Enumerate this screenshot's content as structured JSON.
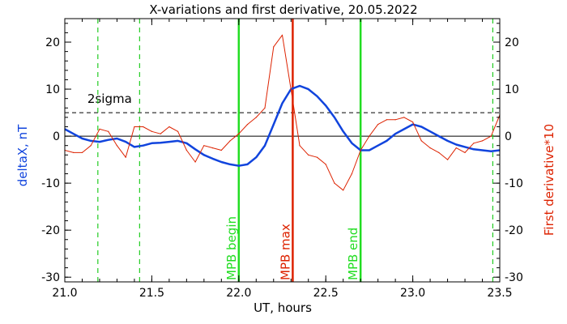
{
  "chart_data": {
    "type": "line",
    "title": "X-variations and first derivative, 20.05.2022",
    "xlabel": "UT, hours",
    "ylabel_left": "deltaX, nT",
    "ylabel_right": "First derivative*10",
    "xlim": [
      21.0,
      23.5
    ],
    "ylim": [
      -31,
      25
    ],
    "xticks": [
      21.0,
      21.5,
      22.0,
      22.5,
      23.0,
      23.5
    ],
    "xtick_labels": [
      "21.0",
      "21.5",
      "22.0",
      "22.5",
      "23.0",
      "23.5"
    ],
    "yticks": [
      -30,
      -20,
      -10,
      0,
      10,
      20
    ],
    "ytick_labels": [
      "-30",
      "-20",
      "-10",
      "0",
      "10",
      "20"
    ],
    "threshold": {
      "label": "2sigma",
      "value": 5
    },
    "vlines": [
      {
        "x": 21.19,
        "style": "dashed",
        "color": "#22cc22"
      },
      {
        "x": 21.43,
        "style": "dashed",
        "color": "#22cc22"
      },
      {
        "x": 23.46,
        "style": "dashed",
        "color": "#22cc22"
      },
      {
        "x": 22.0,
        "style": "solid",
        "color": "#22dd22",
        "label": "MPB begin"
      },
      {
        "x": 22.31,
        "style": "solid",
        "color": "#dd2200",
        "label": "MPB max"
      },
      {
        "x": 22.7,
        "style": "solid",
        "color": "#22dd22",
        "label": "MPB end"
      }
    ],
    "series": [
      {
        "color": "#1144dd",
        "x": [
          21.0,
          21.05,
          21.1,
          21.15,
          21.2,
          21.25,
          21.3,
          21.35,
          21.4,
          21.45,
          21.5,
          21.55,
          21.6,
          21.65,
          21.7,
          21.75,
          21.8,
          21.85,
          21.9,
          21.95,
          22.0,
          22.05,
          22.1,
          22.15,
          22.2,
          22.25,
          22.3,
          22.35,
          22.4,
          22.45,
          22.5,
          22.55,
          22.6,
          22.65,
          22.7,
          22.75,
          22.8,
          22.85,
          22.9,
          22.95,
          23.0,
          23.05,
          23.1,
          23.15,
          23.2,
          23.25,
          23.3,
          23.35,
          23.4,
          23.45,
          23.5
        ],
        "y": [
          1.5,
          0.5,
          -0.5,
          -1.0,
          -1.2,
          -0.8,
          -0.5,
          -1.2,
          -2.3,
          -2.0,
          -1.5,
          -1.4,
          -1.2,
          -1.0,
          -1.5,
          -2.8,
          -4.0,
          -4.8,
          -5.5,
          -6.0,
          -6.3,
          -6.0,
          -4.5,
          -2.0,
          2.5,
          7.0,
          10.0,
          10.7,
          10.0,
          8.5,
          6.5,
          4.0,
          1.0,
          -1.5,
          -3.0,
          -3.0,
          -2.0,
          -1.0,
          0.5,
          1.5,
          2.5,
          2.0,
          1.0,
          0.0,
          -1.0,
          -1.8,
          -2.3,
          -2.8,
          -3.0,
          -3.2,
          -3.0
        ]
      },
      {
        "color": "#dd2200",
        "x": [
          21.0,
          21.05,
          21.1,
          21.15,
          21.2,
          21.25,
          21.3,
          21.35,
          21.4,
          21.45,
          21.5,
          21.55,
          21.6,
          21.65,
          21.7,
          21.75,
          21.8,
          21.85,
          21.9,
          21.95,
          22.0,
          22.05,
          22.1,
          22.15,
          22.2,
          22.25,
          22.3,
          22.35,
          22.4,
          22.45,
          22.5,
          22.55,
          22.6,
          22.65,
          22.7,
          22.75,
          22.8,
          22.85,
          22.9,
          22.95,
          23.0,
          23.05,
          23.1,
          23.15,
          23.2,
          23.25,
          23.3,
          23.35,
          23.4,
          23.45,
          23.5
        ],
        "y": [
          -3.0,
          -3.5,
          -3.5,
          -2.0,
          1.5,
          1.0,
          -2.0,
          -4.5,
          2.0,
          2.0,
          1.0,
          0.5,
          2.0,
          1.0,
          -3.0,
          -5.5,
          -2.0,
          -2.5,
          -3.0,
          -1.0,
          0.5,
          2.5,
          4.0,
          6.0,
          19.0,
          21.5,
          10.0,
          -2.0,
          -4.0,
          -4.5,
          -6.0,
          -10.0,
          -11.5,
          -8.0,
          -3.0,
          0.0,
          2.5,
          3.5,
          3.5,
          4.0,
          3.0,
          -1.0,
          -2.5,
          -3.5,
          -5.0,
          -2.5,
          -3.5,
          -1.5,
          -1.0,
          0.0,
          4.5
        ]
      }
    ]
  }
}
